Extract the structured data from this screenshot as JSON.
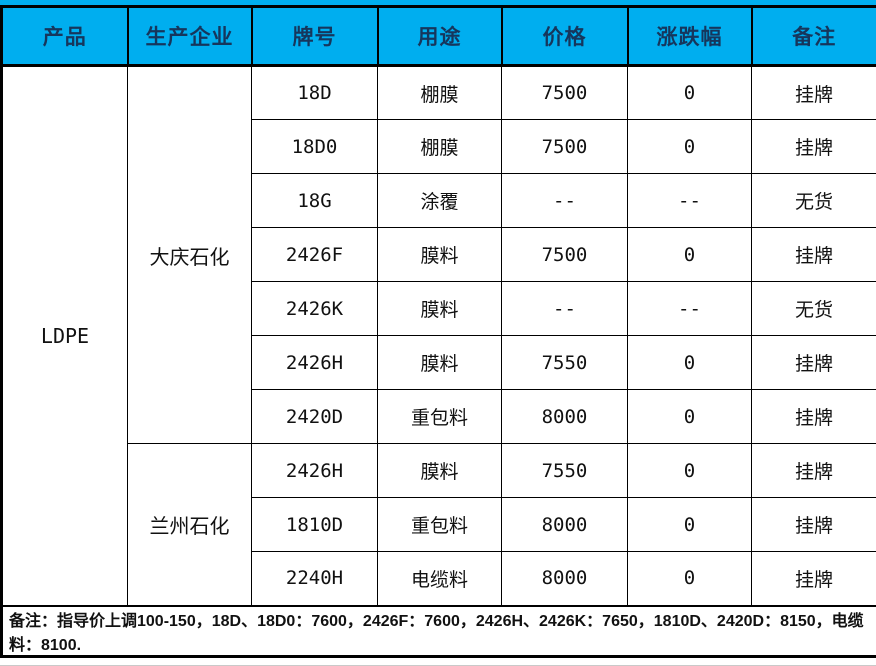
{
  "header": {
    "columns": [
      "产品",
      "生产企业",
      "牌号",
      "用途",
      "价格",
      "涨跌幅",
      "备注"
    ]
  },
  "product": "LDPE",
  "producers": [
    {
      "name": "大庆石化",
      "rowspan": 7
    },
    {
      "name": "兰州石化",
      "rowspan": 3
    }
  ],
  "rows": [
    {
      "grade": "18D",
      "use": "棚膜",
      "price": "7500",
      "change": "0",
      "note": "挂牌"
    },
    {
      "grade": "18D0",
      "use": "棚膜",
      "price": "7500",
      "change": "0",
      "note": "挂牌"
    },
    {
      "grade": "18G",
      "use": "涂覆",
      "price": "--",
      "change": "--",
      "note": "无货"
    },
    {
      "grade": "2426F",
      "use": "膜料",
      "price": "7500",
      "change": "0",
      "note": "挂牌"
    },
    {
      "grade": "2426K",
      "use": "膜料",
      "price": "--",
      "change": "--",
      "note": "无货"
    },
    {
      "grade": "2426H",
      "use": "膜料",
      "price": "7550",
      "change": "0",
      "note": "挂牌"
    },
    {
      "grade": "2420D",
      "use": "重包料",
      "price": "8000",
      "change": "0",
      "note": "挂牌"
    },
    {
      "grade": "2426H",
      "use": "膜料",
      "price": "7550",
      "change": "0",
      "note": "挂牌"
    },
    {
      "grade": "1810D",
      "use": "重包料",
      "price": "8000",
      "change": "0",
      "note": "挂牌"
    },
    {
      "grade": "2240H",
      "use": "电缆料",
      "price": "8000",
      "change": "0",
      "note": "挂牌"
    }
  ],
  "footnote": "备注：指导价上调100-150，18D、18D0：7600，2426F：7600，2426H、2426K：7650，1810D、2420D：8150，电缆料：8100.",
  "colors": {
    "header_bg": "#00AEEF",
    "header_text": "#16365c",
    "border": "#000000"
  }
}
